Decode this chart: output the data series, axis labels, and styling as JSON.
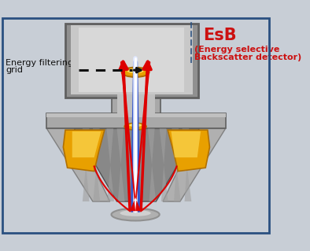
{
  "bg_color": "#c8ced6",
  "border_color": "#2a5080",
  "title_esb": "EsB",
  "title_esb_color": "#cc1111",
  "subtitle_line1": "(Energy selective",
  "subtitle_line2": "Backscatter detector)",
  "subtitle_color": "#cc1111",
  "label_line1": "Energy filtering",
  "label_line2": "grid",
  "label_color": "#111111",
  "gold_color": "#e8a000",
  "gold_highlight": "#ffe060",
  "gold_dark": "#b07000",
  "red_beam_color": "#dd0000",
  "blue_beam_color": "#3355cc",
  "white_beam_color": "#e0e8ff",
  "dashed_line_color": "#111111",
  "det_box_outer": "#808080",
  "det_box_inner": "#b8b8b8",
  "det_box_face": "#d0d0d0",
  "col_gray1": "#909090",
  "col_gray2": "#a8a8a8",
  "col_gray3": "#c0c0c0",
  "col_dark": "#606060",
  "cone_outer": "#a0a0a0",
  "cone_inner": "#888888",
  "sample_outer": "#b0b0b0",
  "sample_inner": "#d0d0d0"
}
